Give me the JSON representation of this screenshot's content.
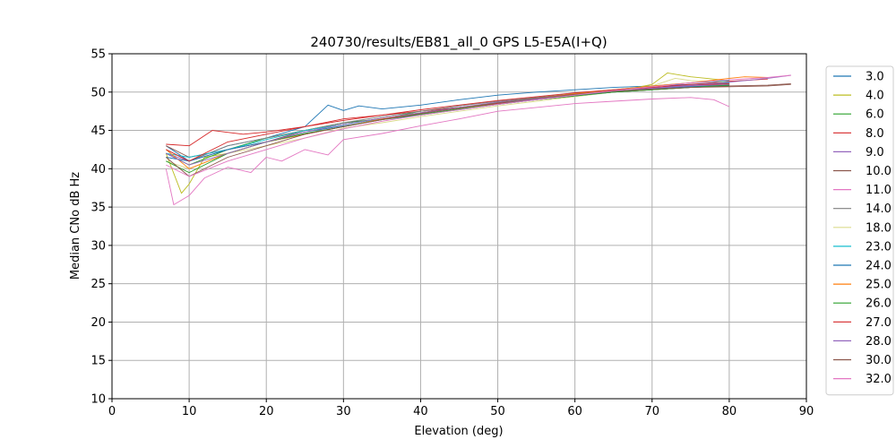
{
  "chart_data": {
    "type": "line",
    "title": "240730/results/EB81_all_0 GPS L5-E5A(I+Q)",
    "xlabel": "Elevation (deg)",
    "ylabel": "Median CNo dB Hz",
    "xlim": [
      0,
      90
    ],
    "ylim": [
      10,
      55
    ],
    "xticks": [
      "0",
      "10",
      "20",
      "30",
      "40",
      "50",
      "60",
      "70",
      "80",
      "90"
    ],
    "yticks": [
      "10",
      "15",
      "20",
      "25",
      "30",
      "35",
      "40",
      "45",
      "50",
      "55"
    ],
    "grid": true,
    "legend_position": "right",
    "series": [
      {
        "name": "3.0",
        "color": "#1f77b4",
        "x": [
          7,
          10,
          15,
          20,
          25,
          28,
          30,
          32,
          35,
          40,
          45,
          50,
          55,
          60,
          65,
          70,
          75,
          80
        ],
        "y": [
          43,
          41,
          43,
          44,
          45.5,
          48.3,
          47.6,
          48.2,
          47.8,
          48.3,
          49,
          49.6,
          50,
          50.3,
          50.6,
          50.8,
          51,
          51.2
        ]
      },
      {
        "name": "4.0",
        "color": "#bcbd22",
        "x": [
          7,
          9,
          10,
          12,
          15,
          20,
          25,
          30,
          35,
          40,
          45,
          50,
          55,
          60,
          65,
          70,
          72,
          75,
          80
        ],
        "y": [
          42,
          36.8,
          38,
          41.5,
          42,
          43.5,
          44.5,
          45.5,
          46.5,
          47,
          47.8,
          48.5,
          49,
          49.5,
          50,
          51,
          52.5,
          52,
          51.5
        ]
      },
      {
        "name": "6.0",
        "color": "#2ca02c",
        "x": [
          7,
          10,
          15,
          20,
          25,
          30,
          35,
          40,
          45,
          50,
          55,
          60,
          65,
          70,
          75,
          80
        ],
        "y": [
          42,
          40.5,
          42.5,
          44,
          45,
          46,
          46.5,
          47.5,
          48,
          48.5,
          49,
          49.5,
          50,
          50.3,
          50.6,
          50.8
        ]
      },
      {
        "name": "8.0",
        "color": "#d62728",
        "x": [
          7,
          10,
          13,
          17,
          20,
          25,
          30,
          35,
          40,
          45,
          50,
          55,
          60,
          65,
          70,
          75,
          80,
          85
        ],
        "y": [
          43.2,
          43,
          45,
          44.5,
          44.8,
          45.5,
          46.5,
          47,
          47.5,
          48,
          48.5,
          49.2,
          49.8,
          50.2,
          50.6,
          51,
          51.4,
          51.7
        ]
      },
      {
        "name": "9.0",
        "color": "#9467bd",
        "x": [
          7,
          10,
          15,
          20,
          25,
          30,
          35,
          40,
          45,
          50,
          55,
          60,
          65,
          70,
          75,
          80
        ],
        "y": [
          42,
          41,
          42.5,
          43.5,
          44.5,
          45.5,
          46.5,
          47.2,
          48,
          48.7,
          49.2,
          49.7,
          50.1,
          50.5,
          50.8,
          51
        ]
      },
      {
        "name": "10.0",
        "color": "#8c564b",
        "x": [
          7,
          10,
          15,
          20,
          25,
          30,
          35,
          40,
          45,
          50,
          55,
          60,
          65,
          70,
          75,
          80,
          85,
          88
        ],
        "y": [
          43,
          41.5,
          42.5,
          43.5,
          45,
          45.8,
          46.6,
          47.3,
          48,
          48.6,
          49.1,
          49.6,
          50,
          50.3,
          50.6,
          50.8,
          50.9,
          51.1
        ]
      },
      {
        "name": "11.0",
        "color": "#e377c2",
        "x": [
          7,
          8,
          10,
          12,
          15,
          18,
          20,
          22,
          25,
          28,
          30,
          35,
          40,
          45,
          50,
          55,
          60,
          65,
          70,
          75,
          78,
          80
        ],
        "y": [
          40,
          35.3,
          36.5,
          38.8,
          40.2,
          39.5,
          41.5,
          41,
          42.5,
          41.8,
          43.8,
          44.6,
          45.6,
          46.5,
          47.5,
          48,
          48.5,
          48.8,
          49.1,
          49.3,
          49,
          48.1
        ]
      },
      {
        "name": "14.0",
        "color": "#7f7f7f",
        "x": [
          7,
          10,
          15,
          20,
          25,
          30,
          35,
          40,
          45,
          50,
          55,
          60,
          65,
          70,
          75,
          80
        ],
        "y": [
          42.5,
          41,
          43,
          44,
          45,
          46,
          46.8,
          47.5,
          48.2,
          48.8,
          49.3,
          49.8,
          50.1,
          50.4,
          50.7,
          50.9
        ]
      },
      {
        "name": "18.0",
        "color": "#dbdb8d",
        "x": [
          7,
          10,
          15,
          20,
          25,
          30,
          35,
          40,
          45,
          50,
          55,
          60,
          65,
          70,
          73,
          75,
          80
        ],
        "y": [
          41,
          40,
          42,
          43,
          44,
          45.3,
          46,
          46.8,
          47.5,
          48.2,
          48.8,
          49.4,
          50,
          50.8,
          51.8,
          51.5,
          51.3
        ]
      },
      {
        "name": "23.0",
        "color": "#17becf",
        "x": [
          7,
          10,
          15,
          20,
          25,
          30,
          35,
          40,
          45,
          50,
          55,
          60,
          65,
          70,
          75,
          80
        ],
        "y": [
          42,
          41.5,
          42.5,
          43.8,
          45,
          45.8,
          46.5,
          47.2,
          48,
          48.6,
          49.2,
          49.8,
          50.3,
          50.8,
          51.2,
          51.5
        ]
      },
      {
        "name": "24.0",
        "color": "#1f77b4",
        "x": [
          7,
          10,
          15,
          20,
          25,
          30,
          35,
          40,
          45,
          50,
          55,
          60,
          65,
          70,
          75,
          80
        ],
        "y": [
          41.5,
          41,
          42.5,
          43.5,
          44.8,
          45.6,
          46.4,
          47,
          47.7,
          48.4,
          49,
          49.5,
          50,
          50.4,
          50.7,
          50.9
        ]
      },
      {
        "name": "25.0",
        "color": "#ff7f0e",
        "x": [
          7,
          10,
          15,
          20,
          25,
          30,
          35,
          40,
          45,
          50,
          55,
          60,
          65,
          70,
          75,
          80,
          82,
          85
        ],
        "y": [
          42.5,
          40,
          42,
          43.5,
          44.5,
          45.5,
          46.5,
          47.2,
          48,
          48.6,
          49.2,
          49.8,
          50.3,
          50.8,
          51.2,
          51.8,
          52,
          51.9
        ]
      },
      {
        "name": "26.0",
        "color": "#2ca02c",
        "x": [
          7,
          10,
          15,
          20,
          25,
          30,
          35,
          40,
          45,
          50,
          55,
          60,
          65,
          70,
          75,
          80
        ],
        "y": [
          41,
          39.5,
          42,
          43.5,
          44.6,
          45.5,
          46.4,
          47.1,
          47.8,
          48.4,
          49,
          49.5,
          50,
          50.3,
          50.6,
          50.9
        ]
      },
      {
        "name": "27.0",
        "color": "#d62728",
        "x": [
          7,
          10,
          15,
          20,
          25,
          30,
          35,
          40,
          45,
          50,
          55,
          60,
          65,
          70,
          75,
          80
        ],
        "y": [
          42.5,
          41,
          43.5,
          44.5,
          45.5,
          46.3,
          47,
          47.7,
          48.3,
          48.9,
          49.4,
          49.9,
          50.3,
          50.6,
          50.9,
          51.1
        ]
      },
      {
        "name": "28.0",
        "color": "#9467bd",
        "x": [
          7,
          10,
          15,
          20,
          25,
          30,
          35,
          40,
          45,
          50,
          55,
          60,
          65,
          70,
          75,
          80,
          85,
          88
        ],
        "y": [
          42,
          40.5,
          42,
          43.5,
          44.8,
          45.8,
          46.6,
          47.3,
          48,
          48.6,
          49.1,
          49.6,
          50.1,
          50.5,
          50.9,
          51.3,
          51.8,
          52.2
        ]
      },
      {
        "name": "30.0",
        "color": "#8c564b",
        "x": [
          7,
          10,
          15,
          20,
          25,
          30,
          35,
          40,
          45,
          50,
          55,
          60,
          65,
          70,
          75,
          80,
          85,
          88
        ],
        "y": [
          41.5,
          39,
          41.5,
          43,
          44.5,
          45.5,
          46.4,
          47.2,
          47.9,
          48.6,
          49.2,
          49.7,
          50.1,
          50.4,
          50.6,
          50.7,
          50.8,
          51
        ]
      },
      {
        "name": "32.0",
        "color": "#e377c2",
        "x": [
          7,
          10,
          15,
          20,
          25,
          30,
          35,
          40,
          45,
          50,
          55,
          60,
          65,
          70,
          75,
          80,
          85,
          88
        ],
        "y": [
          40.5,
          39,
          41,
          42.5,
          44,
          45.2,
          46.2,
          47,
          47.7,
          48.4,
          49,
          49.6,
          50.2,
          50.7,
          51.2,
          51.6,
          51.9,
          52.2
        ]
      }
    ]
  }
}
